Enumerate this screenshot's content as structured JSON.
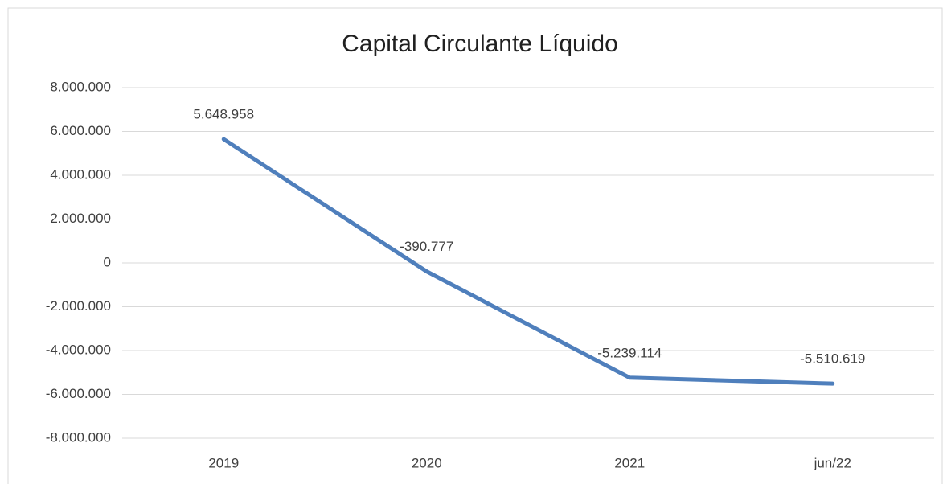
{
  "chart_data": {
    "type": "line",
    "title": "Capital Circulante Líquido",
    "categories": [
      "2019",
      "2020",
      "2021",
      "jun/22"
    ],
    "series": [
      {
        "name": "Capital Circulante Líquido",
        "color": "#4f7fbc",
        "values": [
          5648958,
          -390777,
          -5239114,
          -5510619
        ],
        "value_labels": [
          "5.648.958",
          "-390.777",
          "-5.239.114",
          "-5.510.619"
        ]
      }
    ],
    "ylim": [
      -8000000,
      8000000
    ],
    "yticks": [
      {
        "value": -8000000,
        "label": "-8.000.000"
      },
      {
        "value": -6000000,
        "label": "-6.000.000"
      },
      {
        "value": -4000000,
        "label": "-4.000.000"
      },
      {
        "value": -2000000,
        "label": "-2.000.000"
      },
      0,
      {
        "value": 2000000,
        "label": "2.000.000"
      },
      {
        "value": 4000000,
        "label": "4.000.000"
      },
      {
        "value": 6000000,
        "label": "6.000.000"
      },
      {
        "value": 8000000,
        "label": "8.000.000"
      }
    ],
    "grid": true
  }
}
